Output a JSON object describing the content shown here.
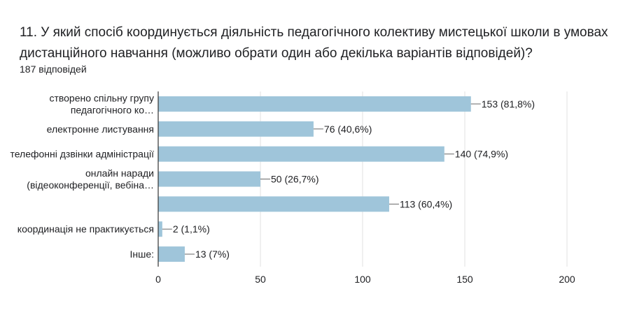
{
  "question": {
    "title": "11. У який спосіб координується діяльність педагогічного колективу мистецької школи в умовах дистанційного навчання (можливо обрати один або декілька варіантів відповідей)?",
    "responses": "187 відповідей"
  },
  "chart_data": {
    "type": "bar",
    "orientation": "horizontal",
    "categories": [
      [
        "створено спільну групу",
        "педагогічного ко…"
      ],
      [
        "електронне листування"
      ],
      [
        "телефонні дзвінки адміністрації"
      ],
      [
        "онлайн наради",
        "(відеоконференції, вебіна…"
      ],
      [
        ""
      ],
      [
        "координація не практикується"
      ],
      [
        "Інше:"
      ]
    ],
    "values": [
      153,
      76,
      140,
      50,
      113,
      2,
      13
    ],
    "value_labels": [
      "153 (81,8%)",
      "76 (40,6%)",
      "140 (74,9%)",
      "50 (26,7%)",
      "113 (60,4%)",
      "2 (1,1%)",
      "13 (7%)"
    ],
    "xlim": [
      0,
      200
    ],
    "xticks": [
      "0",
      "50",
      "100",
      "150",
      "200"
    ],
    "grid": true,
    "colors": {
      "bar": "#9fc5da",
      "grid": "#e0e0e0",
      "axis": "#333333",
      "leader": "#666666"
    }
  }
}
